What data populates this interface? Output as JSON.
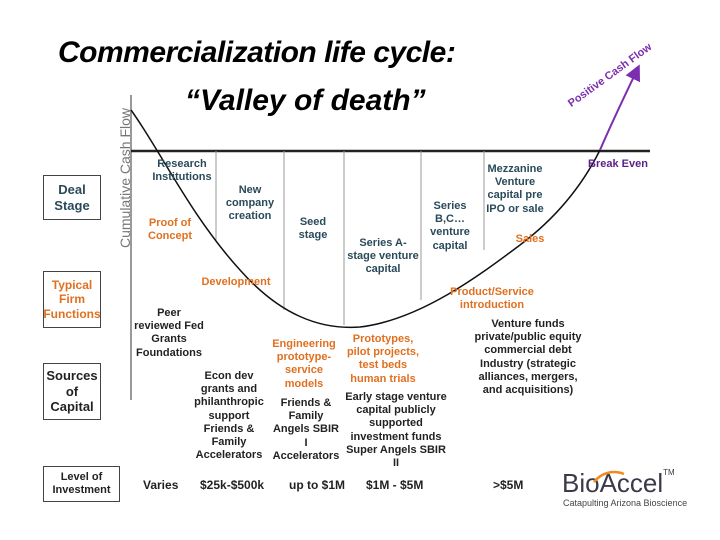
{
  "title": {
    "line1": "Commercialization life cycle:",
    "line2": "“Valley of death”"
  },
  "y_axis_label": "Cumulative Cash Flow",
  "break_even_label": "Break Even",
  "positive_cash_flow_label": "Positive Cash Flow",
  "row_labels": {
    "deal_stage": "Deal Stage",
    "firm_functions": "Typical Firm Functions",
    "sources": "Sources of Capital",
    "investment": "Level of Investment"
  },
  "deal_stages": [
    "Research Institutions",
    "New company creation",
    "Seed stage",
    "Series A-stage venture capital",
    "Series B,C… venture capital",
    "Mezzanine Venture capital pre IPO or sale"
  ],
  "firm_functions": [
    "Proof of Concept",
    "Development",
    "Product/Service introduction",
    "Sales",
    "Engineering prototype-service models",
    "Prototypes, pilot projects, test beds human trials"
  ],
  "sources_of_capital": [
    "Peer reviewed Fed Grants Foundations",
    "Econ dev grants and philanthropic support Friends & Family Accelerators",
    "Friends & Family Angels SBIR I Accelerators",
    "Early stage venture capital publicly supported investment funds Super Angels SBIR II",
    "Venture funds private/public equity commercial debt Industry (strategic alliances, mergers, and acquisitions)"
  ],
  "investment_levels": [
    "Varies",
    "$25k-$500k",
    "up to $1M",
    "$1M - $5M",
    ">$5M"
  ],
  "logo": {
    "name": "BioAccel",
    "tm": "TM",
    "tagline": "Catapulting Arizona Bioscience"
  },
  "colors": {
    "teal_text": "#2a4a5a",
    "orange_text": "#e07020",
    "purple": "#7b2fb0",
    "logo_orange": "#f08a1c"
  }
}
